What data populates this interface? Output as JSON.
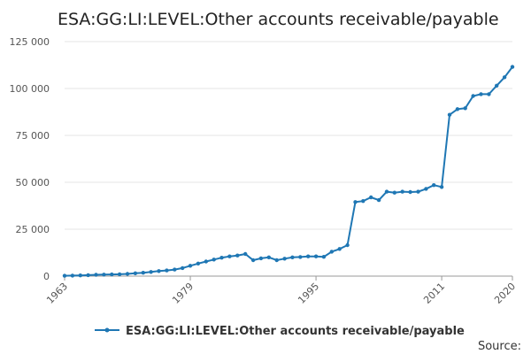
{
  "chart_data": {
    "type": "line",
    "title": "ESA:GG:LI:LEVEL:Other accounts receivable/payable",
    "xlabel": "",
    "ylabel": "",
    "xlim": [
      1963,
      2020
    ],
    "ylim": [
      0,
      125000
    ],
    "yticks": [
      0,
      25000,
      50000,
      75000,
      100000,
      125000
    ],
    "ytick_labels": [
      "0",
      "25 000",
      "50 000",
      "75 000",
      "100 000",
      "125 000"
    ],
    "xticks": [
      1963,
      1979,
      1995,
      2011,
      2020
    ],
    "xtick_labels": [
      "1963",
      "1979",
      "1995",
      "2011",
      "2020"
    ],
    "grid": true,
    "legend": "bottom",
    "color": "#1f77b4",
    "series": [
      {
        "name": "ESA:GG:LI:LEVEL:Other accounts receivable/payable",
        "x": [
          1963,
          1964,
          1965,
          1966,
          1967,
          1968,
          1969,
          1970,
          1971,
          1972,
          1973,
          1974,
          1975,
          1976,
          1977,
          1978,
          1979,
          1980,
          1981,
          1982,
          1983,
          1984,
          1985,
          1986,
          1987,
          1988,
          1989,
          1990,
          1991,
          1992,
          1993,
          1994,
          1995,
          1996,
          1997,
          1998,
          1999,
          2000,
          2001,
          2002,
          2003,
          2004,
          2005,
          2006,
          2007,
          2008,
          2009,
          2010,
          2011,
          2012,
          2013,
          2014,
          2015,
          2016,
          2017,
          2018,
          2019,
          2020
        ],
        "values": [
          200,
          300,
          400,
          500,
          700,
          800,
          900,
          1000,
          1200,
          1500,
          1800,
          2200,
          2700,
          3000,
          3500,
          4300,
          5500,
          6700,
          7800,
          8800,
          9800,
          10500,
          11000,
          11800,
          8500,
          9500,
          10000,
          8500,
          9300,
          10000,
          10200,
          10500,
          10500,
          10300,
          13000,
          14500,
          16500,
          39500,
          40000,
          42000,
          40500,
          45000,
          44500,
          45000,
          44800,
          45000,
          46500,
          48500,
          47500,
          86000,
          89000,
          89500,
          96000,
          97000,
          97000,
          101500,
          106000,
          111500
        ]
      }
    ]
  },
  "source_label": "Source:"
}
